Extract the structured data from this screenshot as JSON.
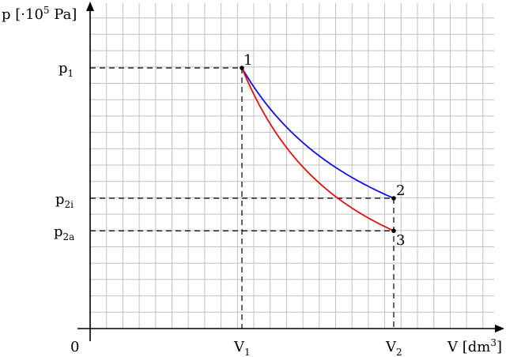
{
  "chart_data": {
    "type": "line",
    "title": "",
    "xlabel": {
      "main": "V [dm",
      "sup": "3",
      "tail": "]"
    },
    "ylabel": {
      "main": "p [·10",
      "sup": "5",
      "tail": " Pa]"
    },
    "origin_label": "0",
    "x_ticks": [
      {
        "id": "V1",
        "main": "V",
        "sub": "1",
        "value": 1
      },
      {
        "id": "V2",
        "main": "V",
        "sub": "2",
        "value": 2
      }
    ],
    "y_ticks": [
      {
        "id": "p1",
        "main": "p",
        "sub": "1",
        "value": 4
      },
      {
        "id": "p2i",
        "main": "p",
        "sub": "2i",
        "value": 2
      },
      {
        "id": "p2a",
        "main": "p",
        "sub": "2a",
        "value": 1.5
      }
    ],
    "points": [
      {
        "label": "1",
        "x": 1,
        "y": 4
      },
      {
        "label": "2",
        "x": 2,
        "y": 2
      },
      {
        "label": "3",
        "x": 2,
        "y": 1.5
      }
    ],
    "series": [
      {
        "from": "1",
        "to": "2",
        "color": "#1010e0"
      },
      {
        "from": "1",
        "to": "3",
        "color": "#e01010"
      }
    ],
    "grid": true,
    "colors": {
      "grid": "#c0c0c0",
      "axis": "#000000"
    }
  }
}
